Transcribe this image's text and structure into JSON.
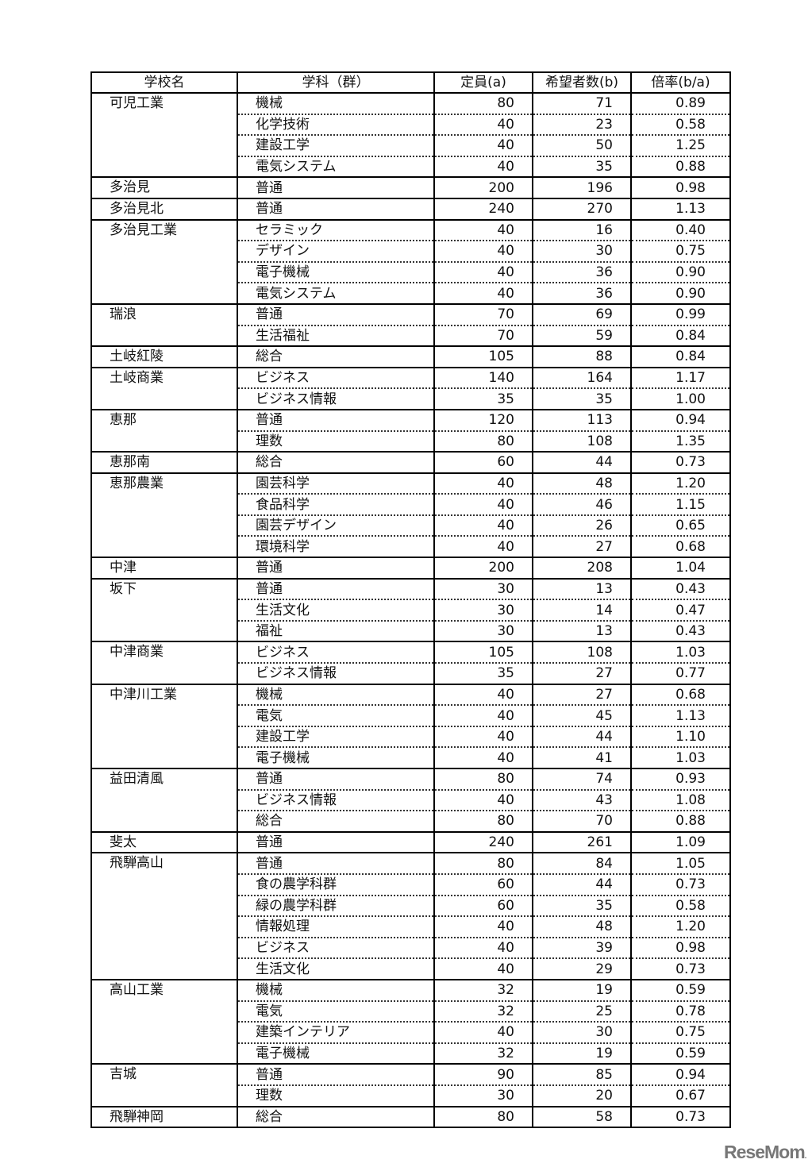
{
  "headers": [
    "学校名",
    "学科（群）",
    "定員(a)",
    "希望者数(b)",
    "倍率(b/a)"
  ],
  "schools": [
    {
      "name": "可児工業",
      "courses": [
        [
          "機械",
          "80",
          "71",
          "0.89"
        ],
        [
          "化学技術",
          "40",
          "23",
          "0.58"
        ],
        [
          "建設工学",
          "40",
          "50",
          "1.25"
        ],
        [
          "電気システム",
          "40",
          "35",
          "0.88"
        ]
      ]
    },
    {
      "name": "多治見",
      "courses": [
        [
          "普通",
          "200",
          "196",
          "0.98"
        ]
      ]
    },
    {
      "name": "多治見北",
      "courses": [
        [
          "普通",
          "240",
          "270",
          "1.13"
        ]
      ]
    },
    {
      "name": "多治見工業",
      "courses": [
        [
          "セラミック",
          "40",
          "16",
          "0.40"
        ],
        [
          "デザイン",
          "40",
          "30",
          "0.75"
        ],
        [
          "電子機械",
          "40",
          "36",
          "0.90"
        ],
        [
          "電気システム",
          "40",
          "36",
          "0.90"
        ]
      ]
    },
    {
      "name": "瑞浪",
      "courses": [
        [
          "普通",
          "70",
          "69",
          "0.99"
        ],
        [
          "生活福祉",
          "70",
          "59",
          "0.84"
        ]
      ]
    },
    {
      "name": "土岐紅陵",
      "courses": [
        [
          "総合",
          "105",
          "88",
          "0.84"
        ]
      ]
    },
    {
      "name": "土岐商業",
      "courses": [
        [
          "ビジネス",
          "140",
          "164",
          "1.17"
        ],
        [
          "ビジネス情報",
          "35",
          "35",
          "1.00"
        ]
      ]
    },
    {
      "name": "恵那",
      "courses": [
        [
          "普通",
          "120",
          "113",
          "0.94"
        ],
        [
          "理数",
          "80",
          "108",
          "1.35"
        ]
      ]
    },
    {
      "name": "恵那南",
      "courses": [
        [
          "総合",
          "60",
          "44",
          "0.73"
        ]
      ]
    },
    {
      "name": "恵那農業",
      "courses": [
        [
          "園芸科学",
          "40",
          "48",
          "1.20"
        ],
        [
          "食品科学",
          "40",
          "46",
          "1.15"
        ],
        [
          "園芸デザイン",
          "40",
          "26",
          "0.65"
        ],
        [
          "環境科学",
          "40",
          "27",
          "0.68"
        ]
      ]
    },
    {
      "name": "中津",
      "courses": [
        [
          "普通",
          "200",
          "208",
          "1.04"
        ]
      ]
    },
    {
      "name": "坂下",
      "courses": [
        [
          "普通",
          "30",
          "13",
          "0.43"
        ],
        [
          "生活文化",
          "30",
          "14",
          "0.47"
        ],
        [
          "福祉",
          "30",
          "13",
          "0.43"
        ]
      ]
    },
    {
      "name": "中津商業",
      "courses": [
        [
          "ビジネス",
          "105",
          "108",
          "1.03"
        ],
        [
          "ビジネス情報",
          "35",
          "27",
          "0.77"
        ]
      ]
    },
    {
      "name": "中津川工業",
      "courses": [
        [
          "機械",
          "40",
          "27",
          "0.68"
        ],
        [
          "電気",
          "40",
          "45",
          "1.13"
        ],
        [
          "建設工学",
          "40",
          "44",
          "1.10"
        ],
        [
          "電子機械",
          "40",
          "41",
          "1.03"
        ]
      ]
    },
    {
      "name": "益田清風",
      "courses": [
        [
          "普通",
          "80",
          "74",
          "0.93"
        ],
        [
          "ビジネス情報",
          "40",
          "43",
          "1.08"
        ],
        [
          "総合",
          "80",
          "70",
          "0.88"
        ]
      ]
    },
    {
      "name": "斐太",
      "courses": [
        [
          "普通",
          "240",
          "261",
          "1.09"
        ]
      ]
    },
    {
      "name": "飛騨高山",
      "courses": [
        [
          "普通",
          "80",
          "84",
          "1.05"
        ],
        [
          "食の農学科群",
          "60",
          "44",
          "0.73"
        ],
        [
          "緑の農学科群",
          "60",
          "35",
          "0.58"
        ],
        [
          "情報処理",
          "40",
          "48",
          "1.20"
        ],
        [
          "ビジネス",
          "40",
          "39",
          "0.98"
        ],
        [
          "生活文化",
          "40",
          "29",
          "0.73"
        ]
      ]
    },
    {
      "name": "高山工業",
      "courses": [
        [
          "機械",
          "32",
          "19",
          "0.59"
        ],
        [
          "電気",
          "32",
          "25",
          "0.78"
        ],
        [
          "建築インテリア",
          "40",
          "30",
          "0.75"
        ],
        [
          "電子機械",
          "32",
          "19",
          "0.59"
        ]
      ]
    },
    {
      "name": "吉城",
      "courses": [
        [
          "普通",
          "90",
          "85",
          "0.94"
        ],
        [
          "理数",
          "30",
          "20",
          "0.67"
        ]
      ]
    },
    {
      "name": "飛騨神岡",
      "courses": [
        [
          "総合",
          "80",
          "58",
          "0.73"
        ]
      ]
    }
  ],
  "watermark": "ReseMom"
}
